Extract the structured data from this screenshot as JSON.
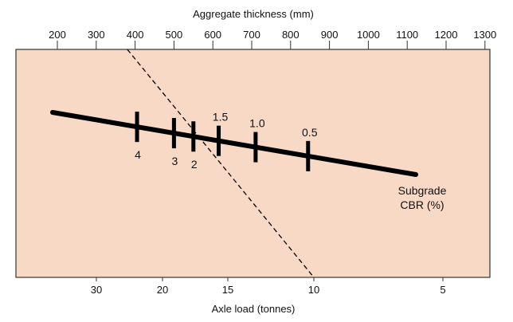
{
  "chart_data": {
    "type": "nomograph",
    "top_axis": {
      "label": "Aggregate thickness (mm)",
      "ticks": [
        "200",
        "300",
        "400",
        "500",
        "600",
        "700",
        "800",
        "900",
        "1000",
        "1100",
        "1200",
        "1300"
      ]
    },
    "bottom_axis": {
      "label": "Axle load (tonnes)",
      "ticks": [
        "30",
        "20",
        "15",
        "10",
        "5"
      ]
    },
    "subgrade_line": {
      "label_line1": "Subgrade",
      "label_line2": "CBR (%)",
      "cbr_marks": [
        {
          "label": "4",
          "thickness_mm": 405
        },
        {
          "label": "3",
          "thickness_mm": 500
        },
        {
          "label": "2",
          "thickness_mm": 550
        },
        {
          "label": "1.5",
          "thickness_mm": 615
        },
        {
          "label": "1.0",
          "thickness_mm": 710
        },
        {
          "label": "0.5",
          "thickness_mm": 845
        }
      ]
    },
    "example_line": {
      "style": "dashed",
      "from": {
        "axis": "top",
        "thickness_mm": 380
      },
      "to": {
        "axis": "bottom",
        "axle_load_tonnes": 10
      }
    },
    "colors": {
      "plot_background": "#f8d9c6",
      "frame": "#333333",
      "line": "#000000"
    }
  }
}
